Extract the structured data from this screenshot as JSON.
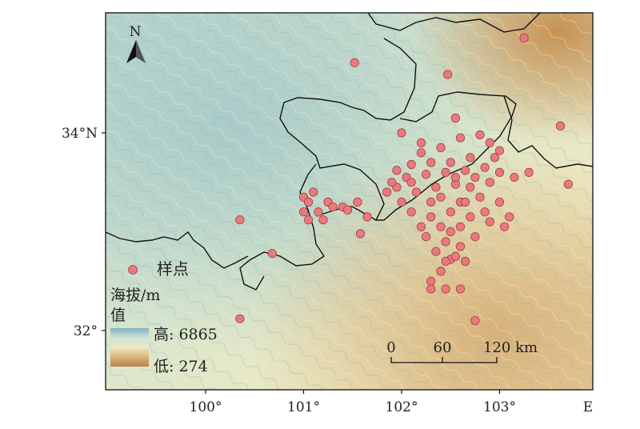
{
  "map": {
    "north_label": "N",
    "x_ticks": [
      {
        "label": "100°",
        "lon": 100
      },
      {
        "label": "101°",
        "lon": 101
      },
      {
        "label": "102°",
        "lon": 102
      },
      {
        "label": "103°",
        "lon": 103
      },
      {
        "label": "E",
        "lon": 103.9
      }
    ],
    "y_ticks": [
      {
        "label": "34°N",
        "lat": 34
      },
      {
        "label": "32°",
        "lat": 32
      }
    ],
    "legend": {
      "sample_label": "样点",
      "elevation_title": "海拔/m",
      "elevation_title_line2": "值",
      "high_label": "高: 6865",
      "low_label": "低: 274"
    },
    "scalebar": {
      "labels": [
        "0",
        "60",
        "120 km"
      ]
    },
    "colors": {
      "point_fill": "#e87a7e",
      "point_stroke": "#a23c40",
      "border": "#111111"
    }
  },
  "sample_points": [
    [
      103.25,
      34.96
    ],
    [
      101.52,
      34.71
    ],
    [
      102.47,
      34.59
    ],
    [
      103.62,
      34.07
    ],
    [
      102.55,
      34.15
    ],
    [
      102.0,
      34.0
    ],
    [
      102.2,
      33.9
    ],
    [
      102.4,
      33.85
    ],
    [
      102.6,
      33.95
    ],
    [
      102.8,
      33.98
    ],
    [
      102.9,
      33.9
    ],
    [
      103.0,
      33.82
    ],
    [
      102.7,
      33.75
    ],
    [
      102.5,
      33.7
    ],
    [
      102.3,
      33.7
    ],
    [
      102.1,
      33.68
    ],
    [
      101.95,
      33.62
    ],
    [
      102.05,
      33.55
    ],
    [
      102.25,
      33.58
    ],
    [
      102.45,
      33.6
    ],
    [
      102.65,
      33.62
    ],
    [
      102.85,
      33.65
    ],
    [
      103.0,
      33.6
    ],
    [
      103.15,
      33.55
    ],
    [
      102.9,
      33.5
    ],
    [
      102.7,
      33.45
    ],
    [
      102.55,
      33.48
    ],
    [
      102.35,
      33.45
    ],
    [
      102.15,
      33.4
    ],
    [
      101.95,
      33.45
    ],
    [
      101.85,
      33.4
    ],
    [
      102.4,
      33.35
    ],
    [
      102.6,
      33.3
    ],
    [
      102.8,
      33.35
    ],
    [
      103.0,
      33.3
    ],
    [
      102.5,
      33.2
    ],
    [
      102.7,
      33.15
    ],
    [
      102.9,
      33.1
    ],
    [
      103.05,
      33.05
    ],
    [
      102.3,
      33.15
    ],
    [
      102.2,
      33.05
    ],
    [
      102.6,
      33.05
    ],
    [
      102.75,
      32.95
    ],
    [
      102.45,
      32.9
    ],
    [
      102.6,
      32.85
    ],
    [
      102.35,
      32.8
    ],
    [
      102.5,
      32.72
    ],
    [
      102.65,
      32.7
    ],
    [
      102.4,
      32.6
    ],
    [
      102.3,
      32.5
    ],
    [
      102.3,
      32.42
    ],
    [
      102.45,
      32.42
    ],
    [
      102.6,
      32.42
    ],
    [
      102.75,
      32.1
    ],
    [
      103.7,
      33.48
    ],
    [
      101.0,
      33.35
    ],
    [
      101.05,
      33.3
    ],
    [
      101.1,
      33.4
    ],
    [
      101.0,
      33.2
    ],
    [
      101.25,
      33.3
    ],
    [
      101.3,
      33.25
    ],
    [
      101.15,
      33.2
    ],
    [
      101.2,
      33.12
    ],
    [
      101.4,
      33.25
    ],
    [
      101.55,
      33.3
    ],
    [
      101.65,
      33.15
    ],
    [
      101.58,
      32.98
    ],
    [
      100.35,
      33.12
    ],
    [
      100.68,
      32.78
    ],
    [
      100.35,
      32.12
    ],
    [
      101.45,
      33.22
    ],
    [
      101.05,
      33.12
    ],
    [
      102.1,
      33.2
    ],
    [
      103.3,
      33.6
    ],
    [
      102.95,
      33.75
    ],
    [
      102.2,
      33.8
    ],
    [
      102.55,
      33.55
    ],
    [
      102.75,
      33.55
    ],
    [
      102.65,
      33.3
    ],
    [
      102.85,
      33.2
    ],
    [
      103.1,
      33.15
    ],
    [
      102.5,
      33.0
    ],
    [
      102.4,
      33.05
    ],
    [
      102.25,
      32.95
    ],
    [
      102.55,
      32.75
    ],
    [
      102.45,
      32.7
    ],
    [
      101.9,
      33.5
    ],
    [
      102.1,
      33.5
    ],
    [
      102.3,
      33.3
    ],
    [
      102.0,
      33.3
    ]
  ]
}
